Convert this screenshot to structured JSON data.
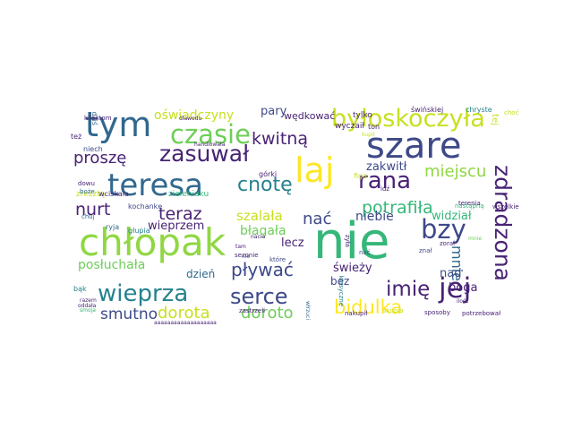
{
  "colors": {
    "background": "#ffffff",
    "palette": {
      "purple": "#482374",
      "indigo": "#3e4989",
      "blue": "#31688e",
      "teal": "#26828e",
      "green": "#1fa187",
      "mint": "#35b779",
      "lime": "#6ece58",
      "leaf": "#90d743",
      "yellow": "#c8e020",
      "gold": "#fde725"
    }
  },
  "words": [
    {
      "text": "nie",
      "color": "mint"
    },
    {
      "text": "chłopak",
      "color": "leaf"
    },
    {
      "text": "szare",
      "color": "indigo"
    },
    {
      "text": "tym",
      "color": "blue"
    },
    {
      "text": "teresa",
      "color": "blue"
    },
    {
      "text": "laj",
      "color": "gold"
    },
    {
      "text": "czasie",
      "color": "lime"
    },
    {
      "text": "zasuwał",
      "color": "purple"
    },
    {
      "text": "byłoskoczyła",
      "color": "yellow"
    },
    {
      "text": "wieprza",
      "color": "teal"
    },
    {
      "text": "jej",
      "color": "purple"
    },
    {
      "text": "bzy",
      "color": "indigo"
    },
    {
      "text": "zdradzona",
      "color": "purple"
    },
    {
      "text": "rana",
      "color": "purple"
    },
    {
      "text": "serce",
      "color": "indigo"
    },
    {
      "text": "cnotę",
      "color": "teal"
    },
    {
      "text": "imię",
      "color": "purple"
    },
    {
      "text": "bidulka",
      "color": "gold"
    },
    {
      "text": "kwitną",
      "color": "purple"
    },
    {
      "text": "proszę",
      "color": "purple"
    },
    {
      "text": "nurt",
      "color": "purple"
    },
    {
      "text": "teraz",
      "color": "purple"
    },
    {
      "text": "pływać",
      "color": "indigo"
    },
    {
      "text": "miejscu",
      "color": "leaf"
    },
    {
      "text": "potrafiła",
      "color": "mint"
    },
    {
      "text": "dorota",
      "color": "yellow"
    },
    {
      "text": "doroto",
      "color": "lime"
    },
    {
      "text": "smutno",
      "color": "indigo"
    },
    {
      "text": "nać",
      "color": "indigo"
    },
    {
      "text": "mnie",
      "color": "blue"
    },
    {
      "text": "oświadczyny",
      "color": "yellow"
    },
    {
      "text": "posłuchała",
      "color": "lime"
    },
    {
      "text": "szalała",
      "color": "yellow"
    },
    {
      "text": "błagała",
      "color": "lime"
    },
    {
      "text": "zakwitł",
      "color": "indigo"
    },
    {
      "text": "widział",
      "color": "mint"
    },
    {
      "text": "niebie",
      "color": "indigo"
    },
    {
      "text": "boga",
      "color": "purple"
    },
    {
      "text": "nad",
      "color": "indigo"
    },
    {
      "text": "lecz",
      "color": "purple"
    },
    {
      "text": "świeży",
      "color": "purple"
    },
    {
      "text": "dzień",
      "color": "blue"
    },
    {
      "text": "wieprzem",
      "color": "purple"
    },
    {
      "text": "pary",
      "color": "indigo"
    },
    {
      "text": "wędkować",
      "color": "purple"
    },
    {
      "text": "tej",
      "color": "yellow"
    },
    {
      "text": "ton",
      "color": "purple"
    },
    {
      "text": "bez",
      "color": "indigo"
    },
    {
      "text": "tylko",
      "color": "purple"
    },
    {
      "text": "wyczaił",
      "color": "purple"
    },
    {
      "text": "zrezztą",
      "color": "yellow"
    },
    {
      "text": "wciskała",
      "color": "purple"
    },
    {
      "text": "zieleniaku",
      "color": "mint"
    },
    {
      "text": "kochankę",
      "color": "indigo"
    },
    {
      "text": "ryja",
      "color": "blue"
    },
    {
      "text": "głupia",
      "color": "teal"
    },
    {
      "text": "też",
      "color": "purple"
    },
    {
      "text": "dziś",
      "color": "blue"
    },
    {
      "text": "niech",
      "color": "indigo"
    },
    {
      "text": "dowu",
      "color": "purple"
    },
    {
      "text": "boże",
      "color": "blue"
    },
    {
      "text": "chuj",
      "color": "blue"
    },
    {
      "text": "bąk",
      "color": "teal"
    },
    {
      "text": "razem",
      "color": "purple"
    },
    {
      "text": "smoja",
      "color": "mint"
    },
    {
      "text": "oddała",
      "color": "purple"
    },
    {
      "text": "klientom",
      "color": "purple"
    },
    {
      "text": "świńskiej",
      "color": "purple"
    },
    {
      "text": "chryste",
      "color": "teal"
    },
    {
      "text": "choć",
      "color": "yellow"
    },
    {
      "text": "kupił",
      "color": "yellow"
    },
    {
      "text": "górki",
      "color": "purple"
    },
    {
      "text": "figa",
      "color": "yellow"
    },
    {
      "text": "zyła",
      "color": "purple"
    },
    {
      "text": "nastąpną",
      "color": "mint"
    },
    {
      "text": "wszelkie",
      "color": "purple"
    },
    {
      "text": "terenia",
      "color": "purple"
    },
    {
      "text": "zoral",
      "color": "purple"
    },
    {
      "text": "znał",
      "color": "indigo"
    },
    {
      "text": "nać",
      "color": "indigo"
    },
    {
      "text": "idź",
      "color": "purple"
    },
    {
      "text": "które",
      "color": "indigo"
    },
    {
      "text": "sezonie",
      "color": "purple"
    },
    {
      "text": "nacia",
      "color": "purple"
    },
    {
      "text": "klasyczne",
      "color": "teal"
    },
    {
      "text": "zastrzeli",
      "color": "purple"
    },
    {
      "text": "nakupił",
      "color": "purple"
    },
    {
      "text": "skupia",
      "color": "yellow"
    },
    {
      "text": "sposoby",
      "color": "purple"
    },
    {
      "text": "potrzebował",
      "color": "purple"
    },
    {
      "text": "włrzuci",
      "color": "blue"
    },
    {
      "text": "ilość",
      "color": "purple"
    },
    {
      "text": "mnie",
      "color": "lime"
    },
    {
      "text": "nie",
      "color": "indigo"
    },
    {
      "text": "tam",
      "color": "purple"
    },
    {
      "text": "handlowała",
      "color": "purple"
    },
    {
      "text": "dlawodu",
      "color": "purple"
    },
    {
      "text": "aaaaaaaaaaaaaaaaaaa",
      "color": "purple"
    }
  ]
}
